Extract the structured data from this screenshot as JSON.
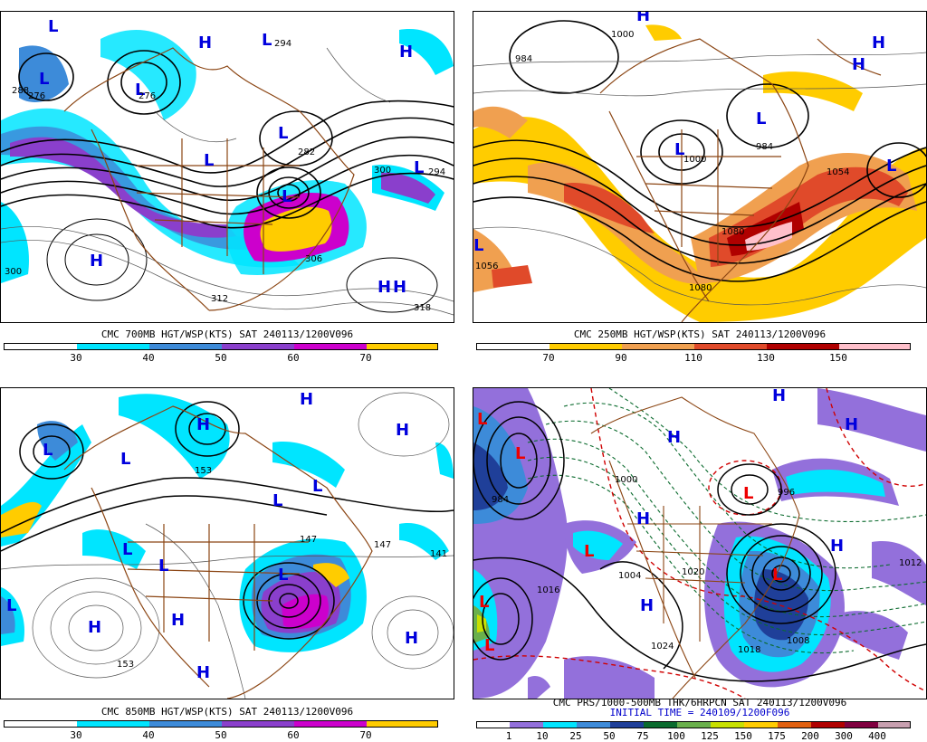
{
  "panels": [
    {
      "id": "p700",
      "caption": "CMC 700MB HGT/WSP(KTS) SAT 240113/1200V096",
      "legend_colors": [
        "#00e5ff",
        "#3d8bd9",
        "#8a3fcc",
        "#cc00cc",
        "#ffcc00"
      ],
      "ticks": [
        "30",
        "40",
        "50",
        "60",
        "70"
      ],
      "contour_labels": [
        "294",
        "276",
        "282",
        "276",
        "300",
        "294",
        "306",
        "312",
        "318",
        "288",
        "300"
      ],
      "highs": [
        "H",
        "H",
        "H",
        "H",
        "H"
      ],
      "lows": [
        "L",
        "L",
        "L",
        "L",
        "L",
        "L",
        "L",
        "L"
      ]
    },
    {
      "id": "p250",
      "caption": "CMC 250MB HGT/WSP(KTS) SAT 240113/1200V096",
      "legend_colors": [
        "#ffcc00",
        "#f0a050",
        "#e04a2a",
        "#b00000",
        "#ffc0cb"
      ],
      "ticks": [
        "70",
        "90",
        "110",
        "130",
        "150"
      ],
      "contour_labels": [
        "1000",
        "984",
        "984",
        "1000",
        "1054",
        "1056",
        "1080",
        "1080"
      ],
      "highs": [
        "H",
        "H",
        "H"
      ],
      "lows": [
        "L",
        "L",
        "L",
        "L"
      ]
    },
    {
      "id": "p850",
      "caption": "CMC 850MB HGT/WSP(KTS) SAT 240113/1200V096",
      "legend_colors": [
        "#00e5ff",
        "#3d8bd9",
        "#8a3fcc",
        "#cc00cc",
        "#ffcc00"
      ],
      "ticks": [
        "30",
        "40",
        "50",
        "60",
        "70"
      ],
      "contour_labels": [
        "153",
        "147",
        "141",
        "153",
        "147"
      ],
      "highs": [
        "H",
        "H",
        "H",
        "H",
        "H",
        "H",
        "H"
      ],
      "lows": [
        "L",
        "L",
        "L",
        "L",
        "L",
        "L",
        "L",
        "L"
      ]
    },
    {
      "id": "pprs",
      "caption": "CMC PRS/1000-500MB THK/6HRPCN SAT 240113/1200V096",
      "subcaption": "INITIAL TIME = 240109/1200F096",
      "legend_colors": [
        "#ffffff",
        "#9370db",
        "#00e5ff",
        "#3d8bd9",
        "#1f3f99",
        "#0b6b2e",
        "#6ab04c",
        "#c8e000",
        "#ffcc00",
        "#e06010",
        "#b00000",
        "#800040",
        "#c8a0b0"
      ],
      "ticks": [
        "1",
        "10",
        "25",
        "50",
        "75",
        "100",
        "125",
        "150",
        "175",
        "200",
        "300",
        "400"
      ],
      "contour_labels": [
        "1024",
        "1018",
        "1008",
        "1016",
        "1020",
        "996",
        "984",
        "1000",
        "1004",
        "1012"
      ],
      "highs": [
        "H",
        "H",
        "H",
        "H",
        "H",
        "H"
      ],
      "lows": [
        "L",
        "L",
        "L",
        "L",
        "L",
        "L",
        "L"
      ]
    }
  ]
}
